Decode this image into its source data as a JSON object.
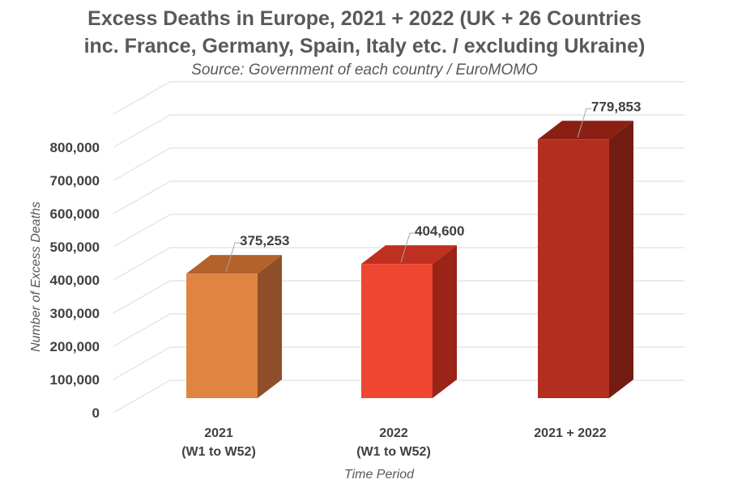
{
  "chart_data": {
    "type": "bar",
    "title_line1": "Excess Deaths in Europe, 2021 + 2022 (UK + 26 Countries",
    "title_line2": "inc. France, Germany, Spain, Italy etc. / excluding Ukraine)",
    "subtitle": "Source: Government of each country / EuroMOMO",
    "xlabel": "Time Period",
    "ylabel": "Number of Excess Deaths",
    "categories": [
      [
        "2021",
        "(W1 to W52)"
      ],
      [
        "2022",
        "(W1 to W52)"
      ],
      [
        "2021 + 2022"
      ]
    ],
    "values": [
      375253,
      404600,
      779853
    ],
    "value_labels": [
      "375,253",
      "404,600",
      "779,853"
    ],
    "yticks": [
      0,
      100000,
      200000,
      300000,
      400000,
      500000,
      600000,
      700000,
      800000
    ],
    "ytick_labels": [
      "0",
      "100,000",
      "200,000",
      "300,000",
      "400,000",
      "500,000",
      "600,000",
      "700,000",
      "800,000"
    ],
    "ylim": [
      0,
      800000
    ],
    "grid": true,
    "legend": "none",
    "colors": [
      {
        "front": "#E08442",
        "top": "#B4622B",
        "side": "#8E4F28"
      },
      {
        "front": "#EE4630",
        "top": "#C03020",
        "side": "#9A2418"
      },
      {
        "front": "#B42E20",
        "top": "#8A2014",
        "side": "#721C12"
      }
    ]
  }
}
